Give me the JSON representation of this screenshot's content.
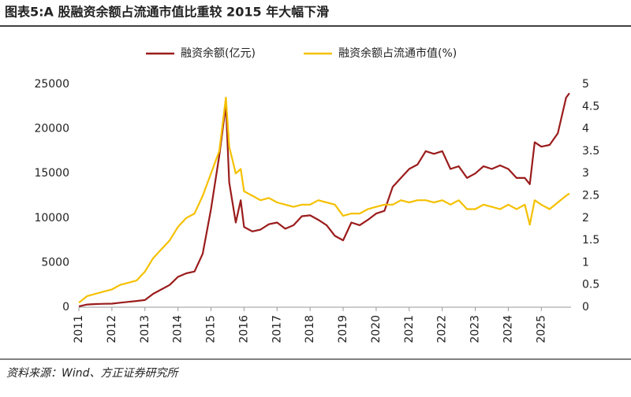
{
  "chart_data": {
    "type": "line",
    "title": "图表5:A 股融资余额占流通市值比重较 2015 年大幅下滑",
    "source": "资料来源：Wind、方正证券研究所",
    "x": [
      2011,
      2011.25,
      2011.5,
      2011.75,
      2012,
      2012.25,
      2012.5,
      2012.75,
      2013,
      2013.25,
      2013.5,
      2013.75,
      2014,
      2014.25,
      2014.5,
      2014.75,
      2015,
      2015.25,
      2015.45,
      2015.55,
      2015.75,
      2015.9,
      2016,
      2016.25,
      2016.5,
      2016.75,
      2017,
      2017.25,
      2017.5,
      2017.75,
      2018,
      2018.25,
      2018.5,
      2018.75,
      2019,
      2019.25,
      2019.5,
      2019.75,
      2020,
      2020.25,
      2020.5,
      2020.75,
      2021,
      2021.25,
      2021.5,
      2021.75,
      2022,
      2022.25,
      2022.5,
      2022.75,
      2023,
      2023.25,
      2023.5,
      2023.75,
      2024,
      2024.25,
      2024.5,
      2024.65,
      2024.8,
      2025,
      2025.25,
      2025.5,
      2025.75,
      2025.85
    ],
    "xlim": [
      2011,
      2025.9
    ],
    "xticks": [
      2011,
      2012,
      2013,
      2014,
      2015,
      2016,
      2017,
      2018,
      2019,
      2020,
      2021,
      2022,
      2023,
      2024,
      2025
    ],
    "ylim": [
      0,
      25000
    ],
    "yticks": [
      0,
      5000,
      10000,
      15000,
      20000,
      25000
    ],
    "y2lim": [
      0,
      5
    ],
    "y2ticks": [
      0,
      0.5,
      1,
      1.5,
      2,
      2.5,
      3,
      3.5,
      4,
      4.5,
      5
    ],
    "series": [
      {
        "name": "融资余额(亿元)",
        "color": "#9b1c1c",
        "values": [
          100,
          300,
          350,
          380,
          400,
          500,
          600,
          700,
          800,
          1500,
          2000,
          2500,
          3400,
          3800,
          4000,
          6000,
          11000,
          17000,
          22700,
          14000,
          9500,
          12000,
          9000,
          8500,
          8700,
          9300,
          9500,
          8800,
          9200,
          10200,
          10300,
          9800,
          9200,
          8000,
          7500,
          9500,
          9200,
          9800,
          10500,
          10800,
          13500,
          14500,
          15500,
          16000,
          17500,
          17200,
          17500,
          15500,
          15800,
          14500,
          15000,
          15800,
          15500,
          15900,
          15500,
          14500,
          14500,
          13800,
          18500,
          18000,
          18200,
          19500,
          23500,
          24000
        ]
      },
      {
        "name": "融资余额占流通市值(%)",
        "color": "#f5c000",
        "axis": "y2",
        "values": [
          0.1,
          0.25,
          0.3,
          0.35,
          0.4,
          0.5,
          0.55,
          0.6,
          0.8,
          1.1,
          1.3,
          1.5,
          1.8,
          2.0,
          2.1,
          2.5,
          3.0,
          3.5,
          4.7,
          3.6,
          3.0,
          3.1,
          2.6,
          2.5,
          2.4,
          2.45,
          2.35,
          2.3,
          2.25,
          2.3,
          2.3,
          2.4,
          2.35,
          2.3,
          2.05,
          2.1,
          2.1,
          2.2,
          2.25,
          2.3,
          2.3,
          2.4,
          2.35,
          2.4,
          2.4,
          2.35,
          2.4,
          2.3,
          2.4,
          2.2,
          2.2,
          2.3,
          2.25,
          2.2,
          2.3,
          2.2,
          2.3,
          1.85,
          2.4,
          2.3,
          2.2,
          2.35,
          2.5,
          2.55
        ]
      }
    ]
  }
}
